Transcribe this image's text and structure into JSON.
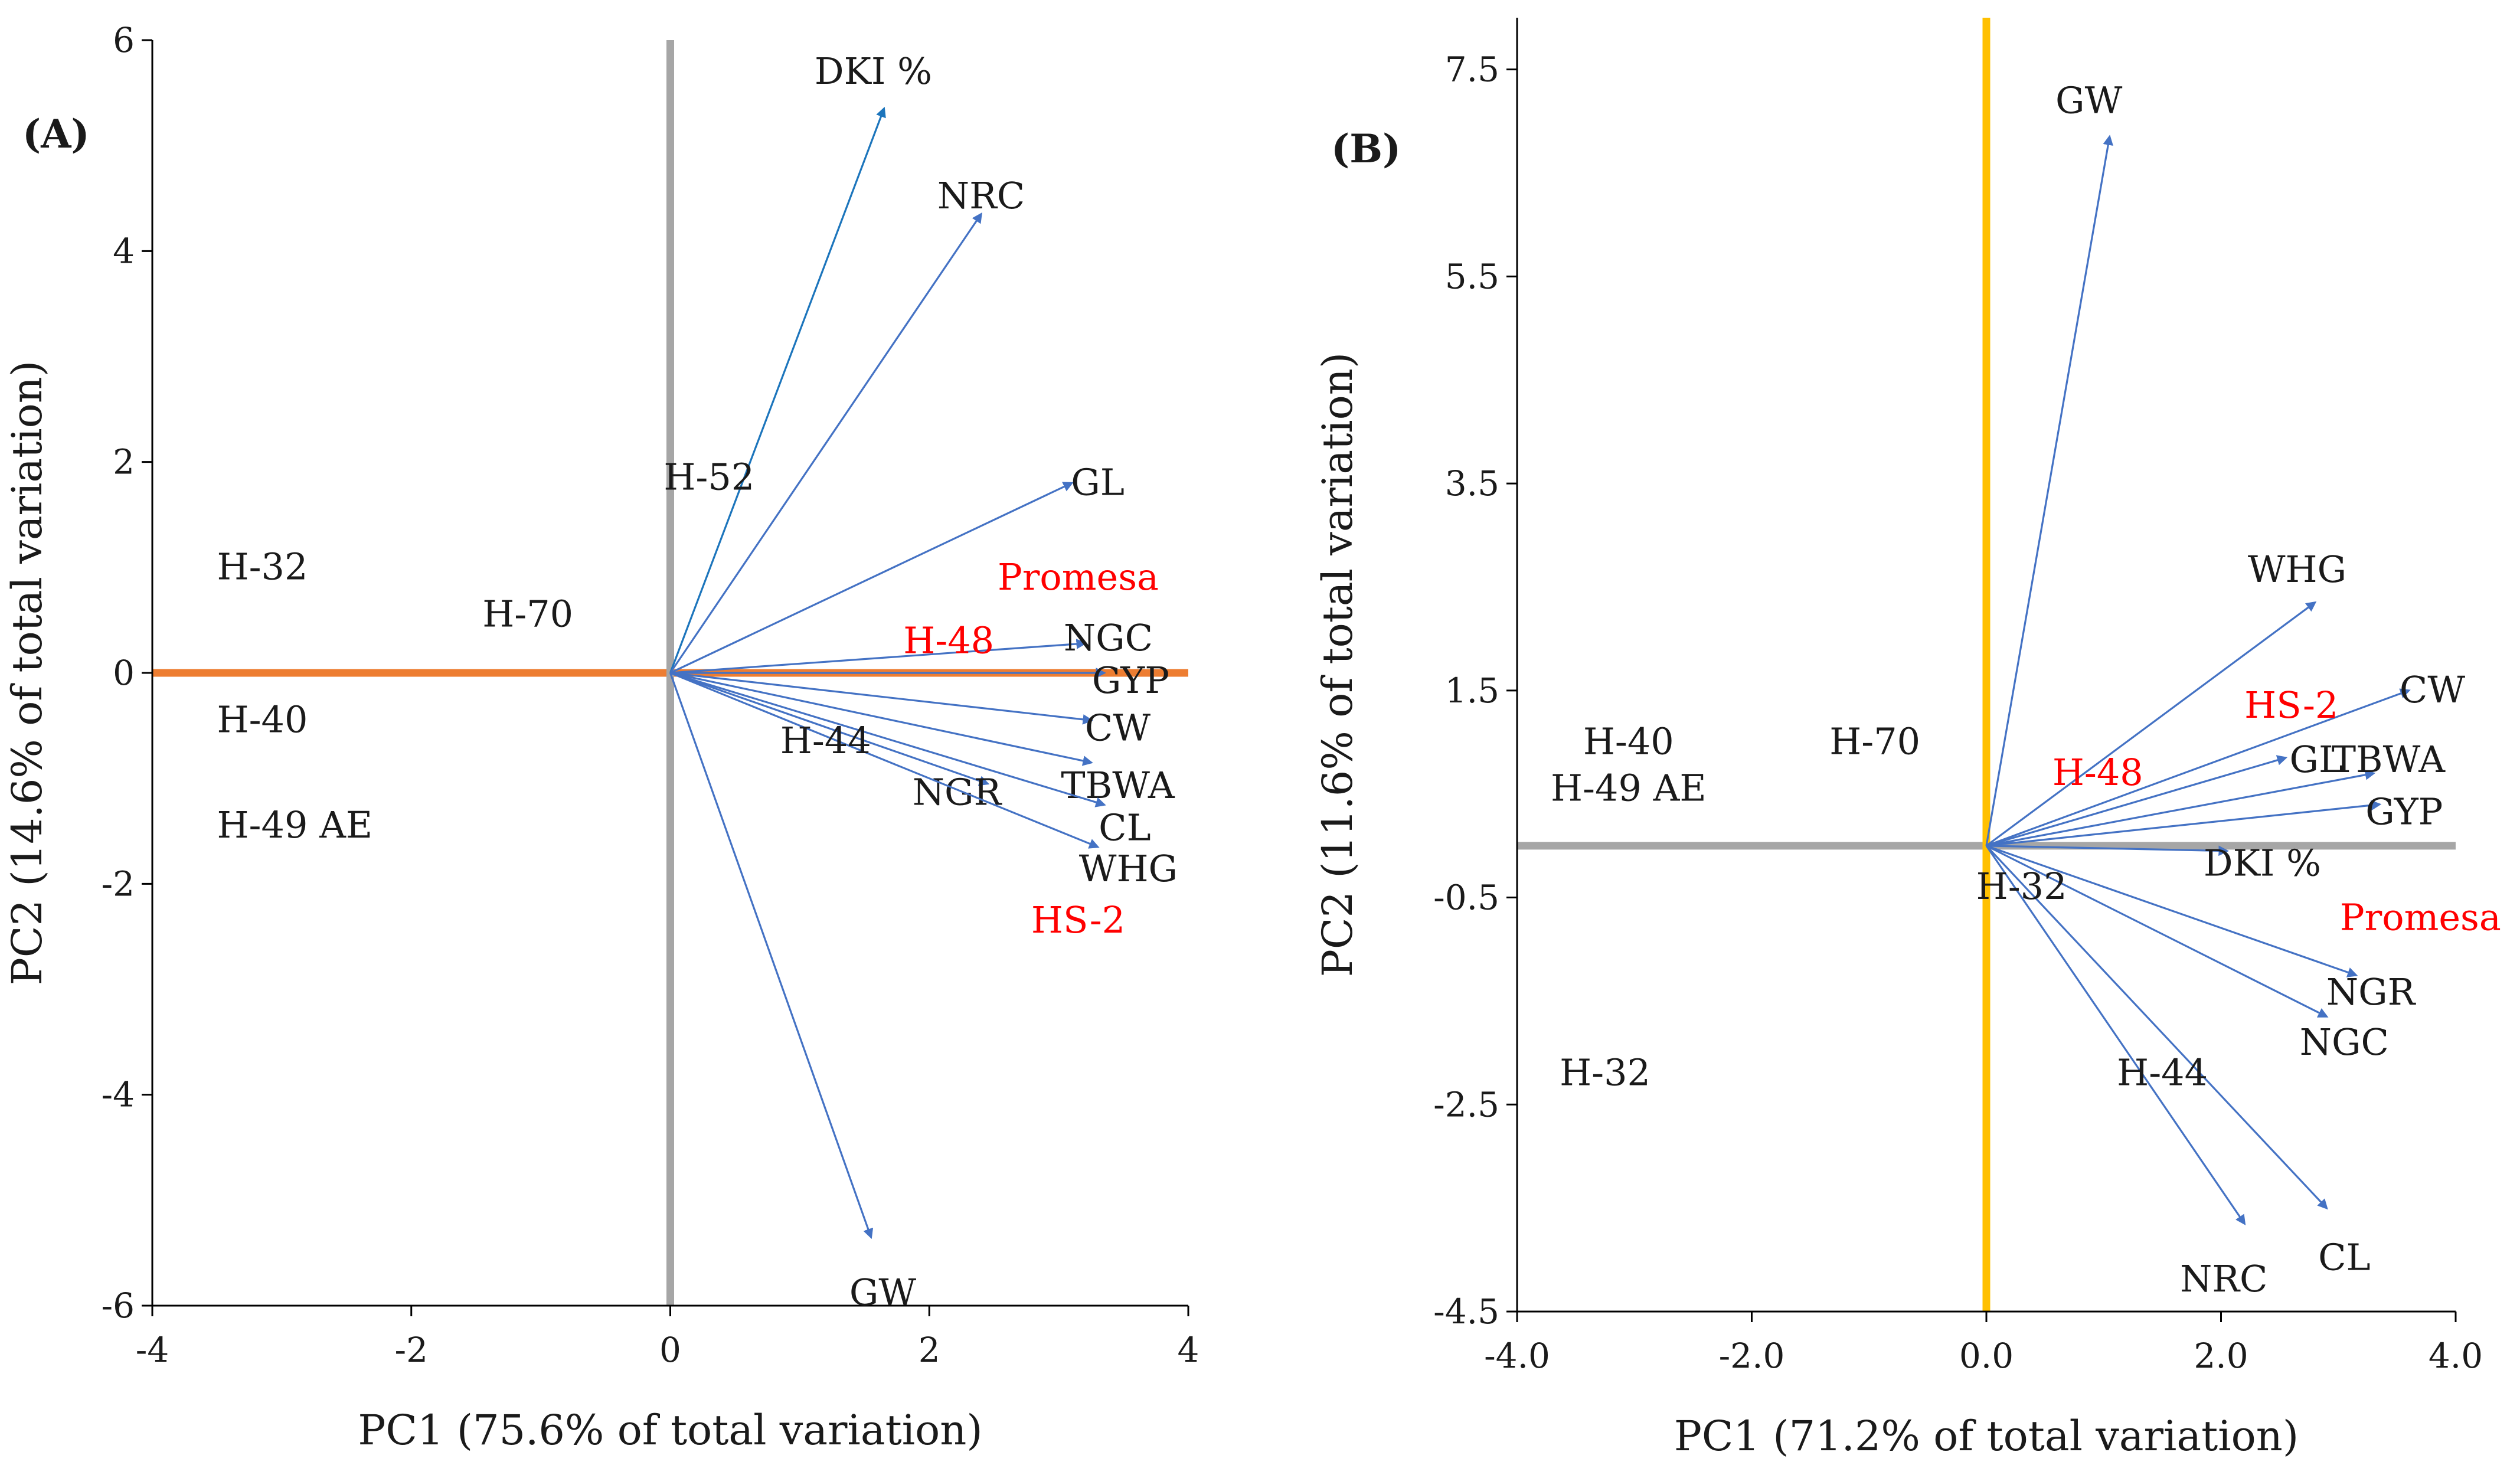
{
  "colors": {
    "arrow_blue": "#4472C4",
    "arrow_teal": "#1C75BC",
    "axis_black": "#000000",
    "axis_gray": "#A6A6A6",
    "axis_orange": "#ED7D31",
    "axis_gold": "#FFC000",
    "text_black": "#1a1a1a",
    "text_red": "#FF0000"
  },
  "chart_data": [
    {
      "type": "scatter",
      "panel_label": "(A)",
      "title": "",
      "xlabel": "PC1 (75.6% of total variation)",
      "ylabel": "PC2 (14.6% of total variation)",
      "xlim": [
        -4,
        4
      ],
      "ylim": [
        -6,
        6
      ],
      "x_ticks": [
        -4,
        -2,
        0,
        2,
        4
      ],
      "x_tick_labels": [
        "-4",
        "-2",
        "0",
        "2",
        "4"
      ],
      "y_ticks": [
        -6,
        -4,
        -2,
        0,
        2,
        4,
        6
      ],
      "y_tick_labels": [
        "-6",
        "-4",
        "-2",
        "0",
        "2",
        "4",
        "6"
      ],
      "zero_lines": {
        "horizontal_color": "orange",
        "vertical_color": "gray"
      },
      "vectors": [
        {
          "name": "DKI %",
          "x": 1.65,
          "y": 5.35,
          "label": "DKI %",
          "color": "teal"
        },
        {
          "name": "NRC",
          "x": 2.4,
          "y": 4.35,
          "label": "NRC"
        },
        {
          "name": "GL",
          "x": 3.1,
          "y": 1.8,
          "label": "GL"
        },
        {
          "name": "NGC",
          "x": 3.2,
          "y": 0.28,
          "label": "NGC"
        },
        {
          "name": "GYP",
          "x": 3.35,
          "y": 0.0,
          "label": "GYP"
        },
        {
          "name": "CW",
          "x": 3.25,
          "y": -0.45,
          "label": "CW"
        },
        {
          "name": "TBWA",
          "x": 3.25,
          "y": -0.85,
          "label": "TBWA"
        },
        {
          "name": "NGR",
          "x": 2.45,
          "y": -1.05,
          "label": "NGR"
        },
        {
          "name": "CL",
          "x": 3.35,
          "y": -1.25,
          "label": "CL"
        },
        {
          "name": "WHG",
          "x": 3.3,
          "y": -1.65,
          "label": "WHG"
        },
        {
          "name": "GW",
          "x": 1.55,
          "y": -5.35,
          "label": "GW"
        }
      ],
      "genotypes": [
        {
          "label": "H-32",
          "x": -3.15,
          "y": 1.0,
          "highlight": false
        },
        {
          "label": "H-70",
          "x": -1.1,
          "y": 0.55,
          "highlight": false
        },
        {
          "label": "H-52",
          "x": 0.3,
          "y": 1.85,
          "highlight": false
        },
        {
          "label": "H-40",
          "x": -3.15,
          "y": -0.45,
          "highlight": false
        },
        {
          "label": "H-49 AE",
          "x": -2.9,
          "y": -1.45,
          "highlight": false
        },
        {
          "label": "H-44",
          "x": 1.2,
          "y": -0.65,
          "highlight": false
        },
        {
          "label": "Promesa",
          "x": 3.15,
          "y": 0.9,
          "highlight": true
        },
        {
          "label": "H-48",
          "x": 2.15,
          "y": 0.3,
          "highlight": true
        },
        {
          "label": "HS-2",
          "x": 3.15,
          "y": -2.35,
          "highlight": true
        }
      ]
    },
    {
      "type": "scatter",
      "panel_label": "(B)",
      "title": "",
      "xlabel": "PC1 (71.2% of total variation)",
      "ylabel": "PC2 (11.6% of total variation)",
      "xlim": [
        -4.0,
        4.0
      ],
      "ylim": [
        -4.5,
        8.0
      ],
      "x_ticks": [
        -4.0,
        -2.0,
        0.0,
        2.0,
        4.0
      ],
      "x_tick_labels": [
        "-4.0",
        "-2.0",
        "0.0",
        "2.0",
        "4.0"
      ],
      "y_ticks": [
        -4.5,
        -2.5,
        -0.5,
        1.5,
        3.5,
        5.5,
        7.5
      ],
      "y_tick_labels": [
        "-4.5",
        "-2.5",
        "-0.5",
        "1.5",
        "3.5",
        "5.5",
        "7.5"
      ],
      "zero_lines": {
        "horizontal_color": "gray",
        "vertical_color": "gold"
      },
      "vectors": [
        {
          "name": "GW",
          "x": 1.05,
          "y": 6.85,
          "label": "GW"
        },
        {
          "name": "WHG",
          "x": 2.8,
          "y": 2.35,
          "label": "WHG"
        },
        {
          "name": "CW",
          "x": 3.6,
          "y": 1.5,
          "label": "CW"
        },
        {
          "name": "GL",
          "x": 2.55,
          "y": 0.85,
          "label": "GL"
        },
        {
          "name": "TBWA",
          "x": 3.3,
          "y": 0.7,
          "label": "TBWA"
        },
        {
          "name": "GYP",
          "x": 3.35,
          "y": 0.4,
          "label": "GYP"
        },
        {
          "name": "DKI %",
          "x": 2.05,
          "y": -0.05,
          "label": "DKI %"
        },
        {
          "name": "NGR",
          "x": 3.15,
          "y": -1.25,
          "label": "NGR"
        },
        {
          "name": "NGC",
          "x": 2.9,
          "y": -1.65,
          "label": "NGC"
        },
        {
          "name": "CL",
          "x": 2.9,
          "y": -3.5,
          "label": "CL"
        },
        {
          "name": "NRC",
          "x": 2.2,
          "y": -3.65,
          "label": "NRC"
        }
      ],
      "genotypes": [
        {
          "label": "H-40",
          "x": -3.05,
          "y": 1.0,
          "highlight": false
        },
        {
          "label": "H-70",
          "x": -0.95,
          "y": 1.0,
          "highlight": false
        },
        {
          "label": "H-49 AE",
          "x": -3.05,
          "y": 0.55,
          "highlight": false
        },
        {
          "label": "H-32",
          "x": 0.3,
          "y": -0.4,
          "highlight": false
        },
        {
          "label": "H-32",
          "x": -3.25,
          "y": -2.2,
          "highlight": false
        },
        {
          "label": "H-44",
          "x": 1.5,
          "y": -2.2,
          "highlight": false
        },
        {
          "label": "HS-2",
          "x": 2.6,
          "y": 1.35,
          "highlight": true
        },
        {
          "label": "H-48",
          "x": 0.95,
          "y": 0.7,
          "highlight": true
        },
        {
          "label": "Promesa",
          "x": 3.7,
          "y": -0.7,
          "highlight": true
        }
      ]
    }
  ]
}
